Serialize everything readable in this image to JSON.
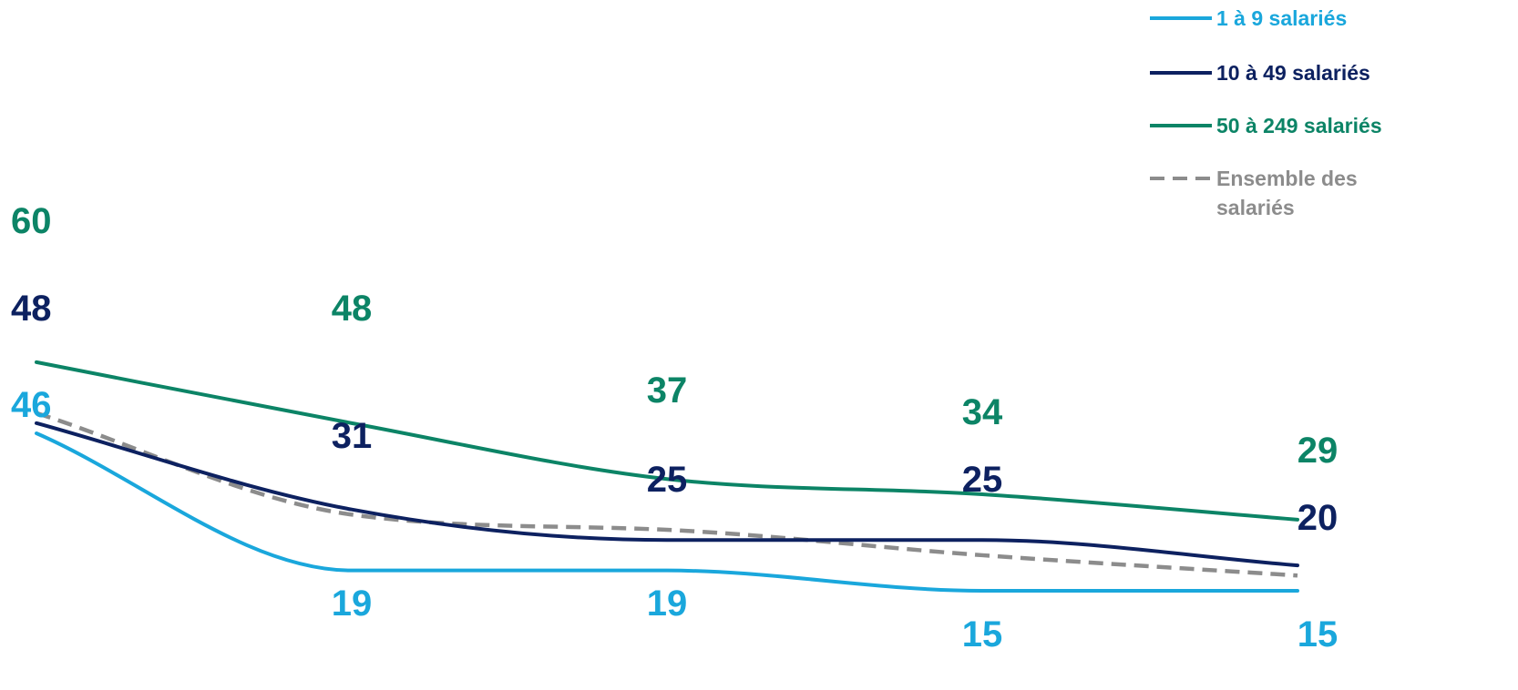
{
  "chart_data": {
    "type": "line",
    "title": "",
    "xlabel": "",
    "ylabel": "",
    "categories": [
      "",
      "",
      "",
      "",
      ""
    ],
    "ylim": [
      0,
      70
    ],
    "grid": false,
    "legend_position": "top-right",
    "series": [
      {
        "name": "1 à 9 salariés",
        "color": "#1aa7dc",
        "style": "solid",
        "values": [
          46,
          19,
          19,
          15,
          15
        ],
        "labels": [
          "46",
          "19",
          "19",
          "15",
          "15"
        ]
      },
      {
        "name": "10 à 49 salariés",
        "color": "#0d2160",
        "style": "solid",
        "values": [
          48,
          31,
          25,
          25,
          20
        ],
        "labels": [
          "48",
          "31",
          "25",
          "25",
          "20"
        ]
      },
      {
        "name": "50 à 249 salariés",
        "color": "#0c8466",
        "style": "solid",
        "values": [
          60,
          48,
          37,
          34,
          29
        ],
        "labels": [
          "60",
          "48",
          "37",
          "34",
          "29"
        ]
      },
      {
        "name": "Ensemble des salariés",
        "color": "#8c8c8c",
        "style": "dashed",
        "values": [
          50,
          30,
          27,
          22,
          18
        ],
        "labels": [
          "",
          "",
          "",
          "",
          ""
        ]
      }
    ]
  }
}
